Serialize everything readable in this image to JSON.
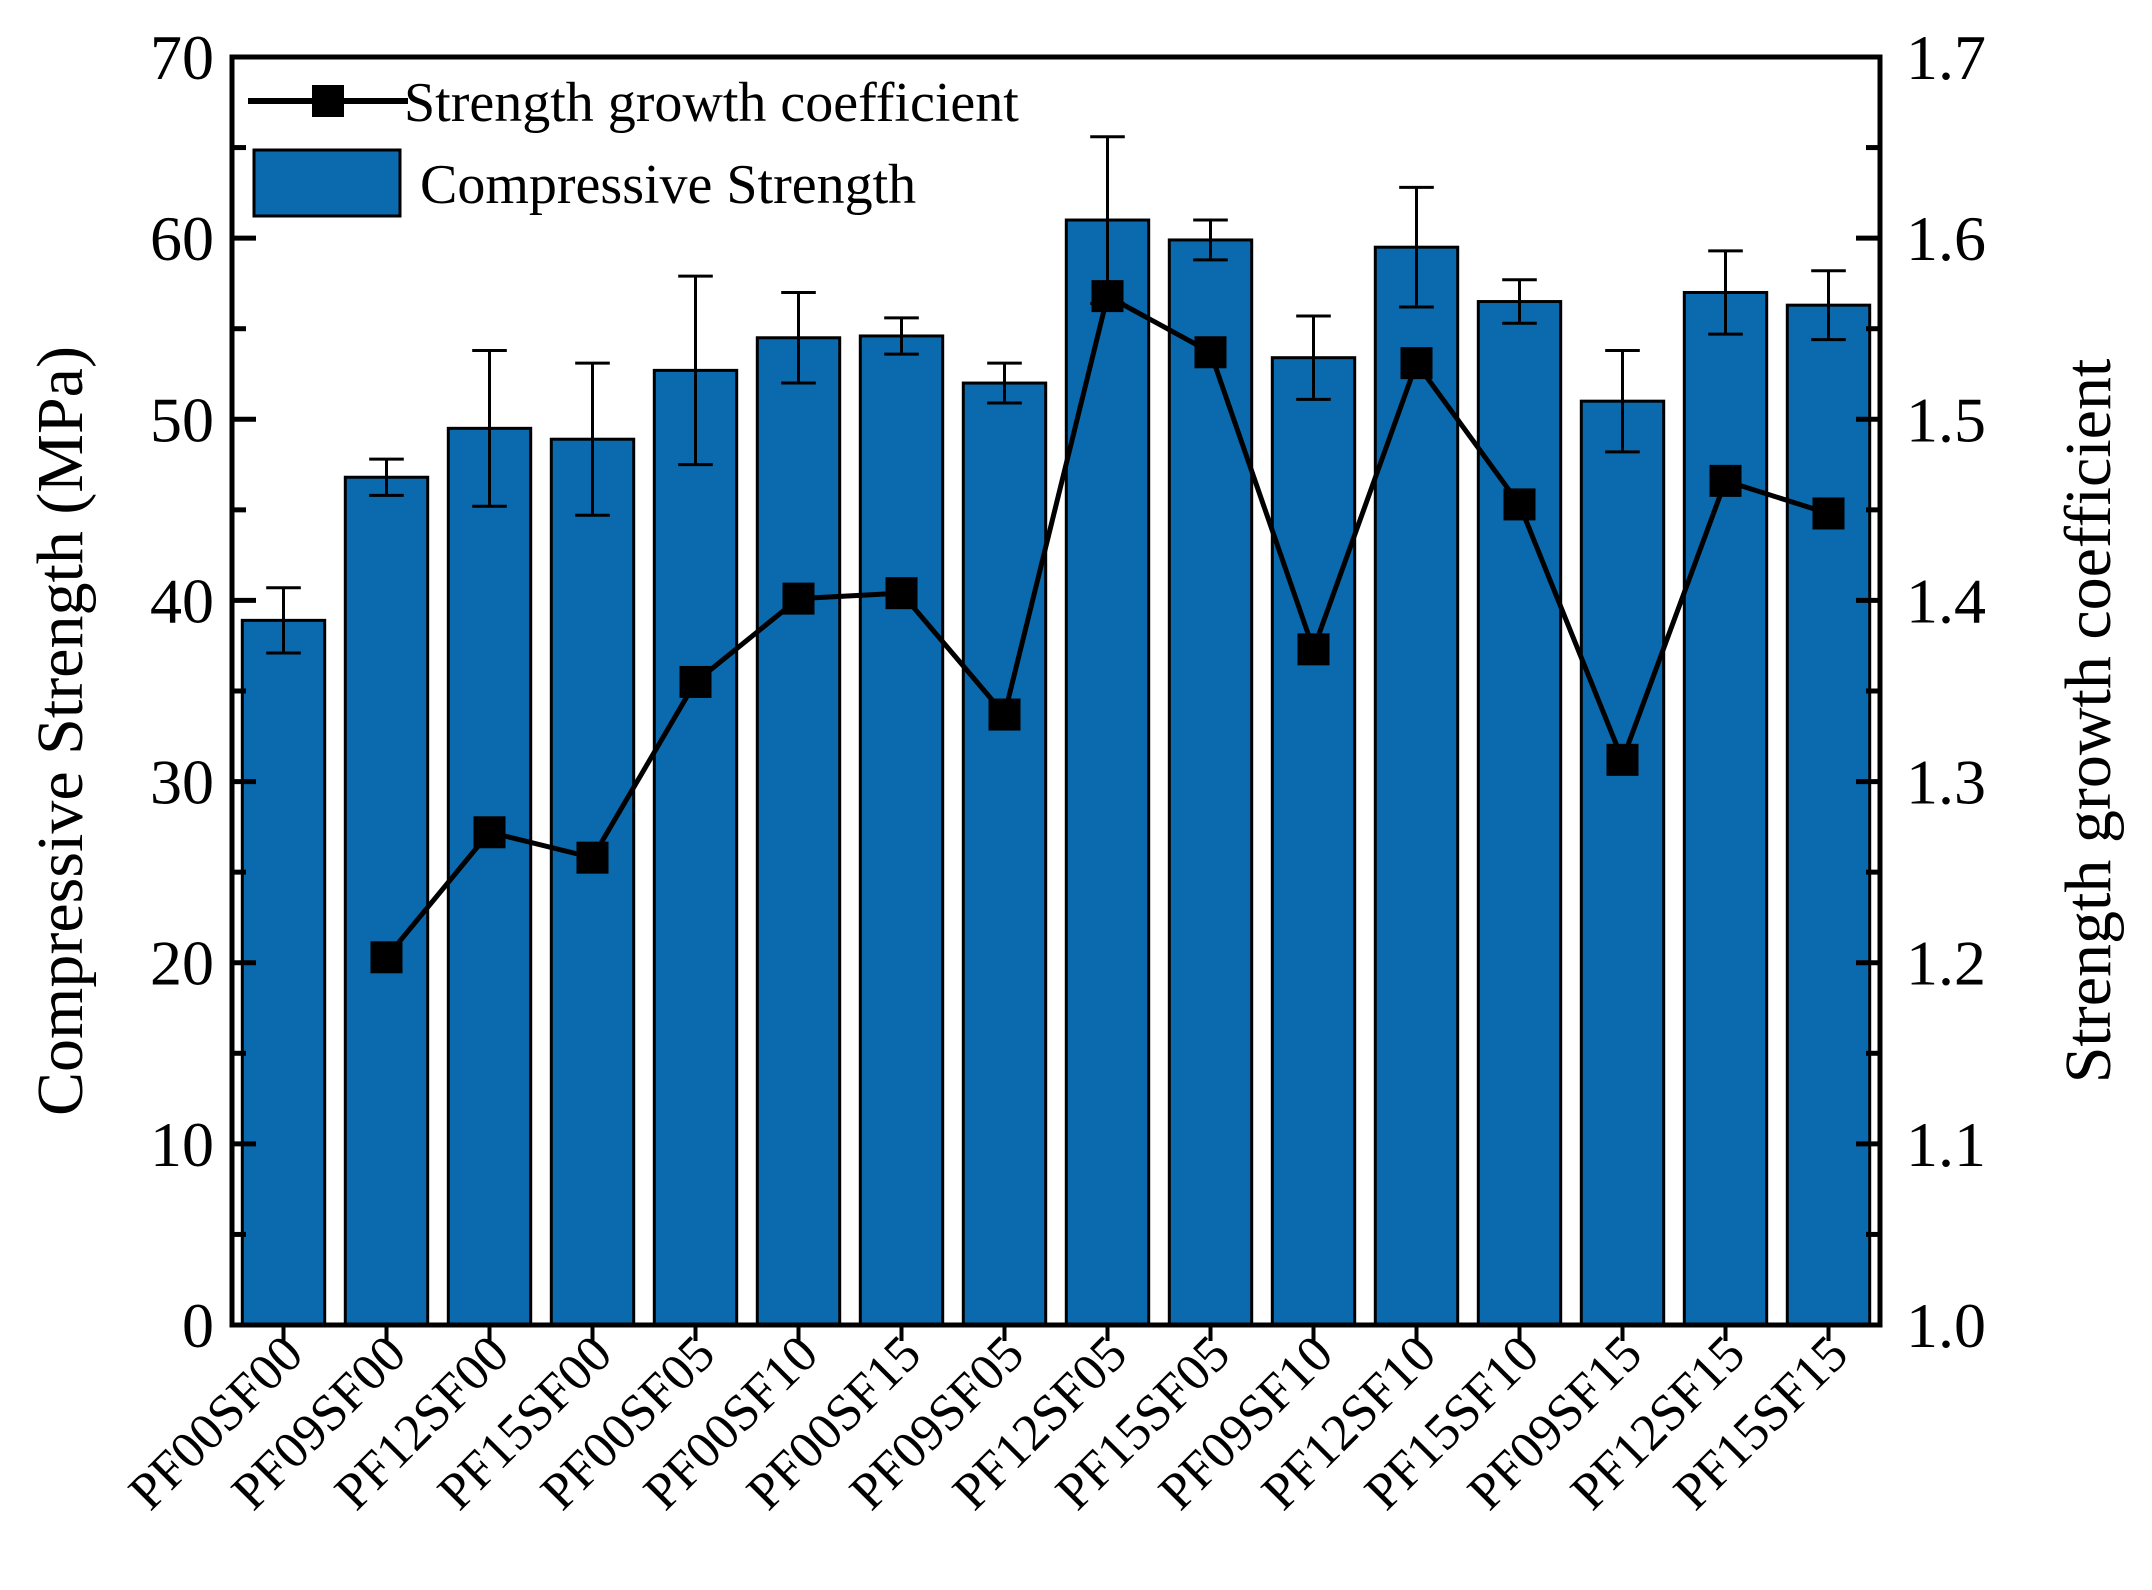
{
  "chart_data": {
    "type": "bar",
    "title": "",
    "xlabel": "",
    "ylabel": "Compressive Strength (MPa)",
    "y2label": "Strength growth coefficient",
    "ylim": [
      0,
      70
    ],
    "y2lim": [
      1.0,
      1.7
    ],
    "yticks": [
      "0",
      "10",
      "20",
      "30",
      "40",
      "50",
      "60",
      "70"
    ],
    "y2ticks": [
      "1.0",
      "1.1",
      "1.2",
      "1.3",
      "1.4",
      "1.5",
      "1.6",
      "1.7"
    ],
    "grid": false,
    "legend_position": "top-left",
    "categories": [
      "PF00SF00",
      "PF09SF00",
      "PF12SF00",
      "PF15SF00",
      "PF00SF05",
      "PF00SF10",
      "PF00SF15",
      "PF09SF05",
      "PF12SF05",
      "PF15SF05",
      "PF09SF10",
      "PF12SF10",
      "PF15SF10",
      "PF09SF15",
      "PF12SF15",
      "PF15SF15"
    ],
    "series": [
      {
        "name": "Compressive Strength",
        "type": "bar",
        "axis": "left",
        "color": "#0a6aad",
        "values": [
          38.9,
          46.8,
          49.5,
          48.9,
          52.7,
          54.5,
          54.6,
          52.0,
          61.0,
          59.9,
          53.4,
          59.5,
          56.5,
          51.0,
          57.0,
          56.3
        ],
        "error": [
          1.8,
          1.0,
          4.3,
          4.2,
          5.2,
          2.5,
          1.0,
          1.1,
          4.6,
          1.1,
          2.3,
          3.3,
          1.2,
          2.8,
          2.3,
          1.9
        ]
      },
      {
        "name": "Strength growth coefficient",
        "type": "line",
        "axis": "right",
        "color": "#000000",
        "marker": "square",
        "values": [
          null,
          1.203,
          1.272,
          1.258,
          1.355,
          1.401,
          1.404,
          1.337,
          1.568,
          1.537,
          1.373,
          1.531,
          1.453,
          1.312,
          1.466,
          1.448
        ]
      }
    ]
  }
}
